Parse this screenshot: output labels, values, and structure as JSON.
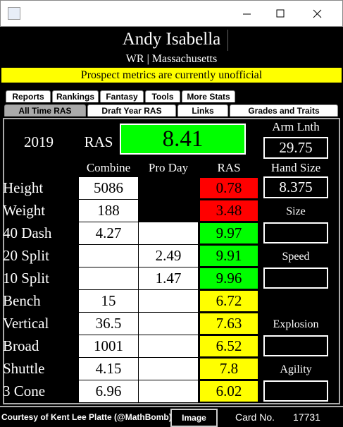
{
  "header": {
    "name": "Andy Isabella",
    "subtitle": "WR | Massachusetts",
    "banner": "Prospect metrics are currently unofficial"
  },
  "tabs": {
    "row1": [
      "Reports",
      "Rankings",
      "Fantasy",
      "Tools",
      "More Stats"
    ],
    "row2": [
      "All Time RAS",
      "Draft Year RAS",
      "Links",
      "Grades and Traits"
    ],
    "selected": "All Time RAS"
  },
  "summary": {
    "year": "2019",
    "ras_label": "RAS",
    "ras": "8.41",
    "ras_color": "#00ff00"
  },
  "columns": [
    "Combine",
    "Pro Day",
    "RAS"
  ],
  "rows": [
    {
      "label": "Height",
      "combine": "5086",
      "ras": "0.78",
      "color": "#ff0000"
    },
    {
      "label": "Weight",
      "combine": "188",
      "ras": "3.48",
      "color": "#ff0000"
    },
    {
      "label": "40 Dash",
      "combine": "4.27",
      "ras": "9.97",
      "color": "#00ff00"
    },
    {
      "label": "20 Split",
      "pro_day": "2.49",
      "ras": "9.91",
      "color": "#00ff00"
    },
    {
      "label": "10 Split",
      "pro_day": "1.47",
      "ras": "9.96",
      "color": "#00ff00"
    },
    {
      "label": "Bench",
      "combine": "15",
      "ras": "6.72",
      "color": "#ffff00"
    },
    {
      "label": "Vertical",
      "combine": "36.5",
      "ras": "7.63",
      "color": "#ffff00"
    },
    {
      "label": "Broad",
      "combine": "1001",
      "ras": "6.52",
      "color": "#ffff00"
    },
    {
      "label": "Shuttle",
      "combine": "4.15",
      "ras": "7.8",
      "color": "#ffff00"
    },
    {
      "label": "3 Cone",
      "combine": "6.96",
      "ras": "6.02",
      "color": "#ffff00"
    }
  ],
  "side": {
    "arm_label": "Arm Lnth",
    "arm": "29.75",
    "hand_label": "Hand Size",
    "hand": "8.375",
    "groups": [
      "Size",
      "Speed",
      "Explosion",
      "Agility"
    ]
  },
  "footer": {
    "credit": "Courtesy of Kent Lee Platte (@MathBomb)",
    "button": "Image",
    "card_label": "Card No.",
    "card": "17731"
  }
}
